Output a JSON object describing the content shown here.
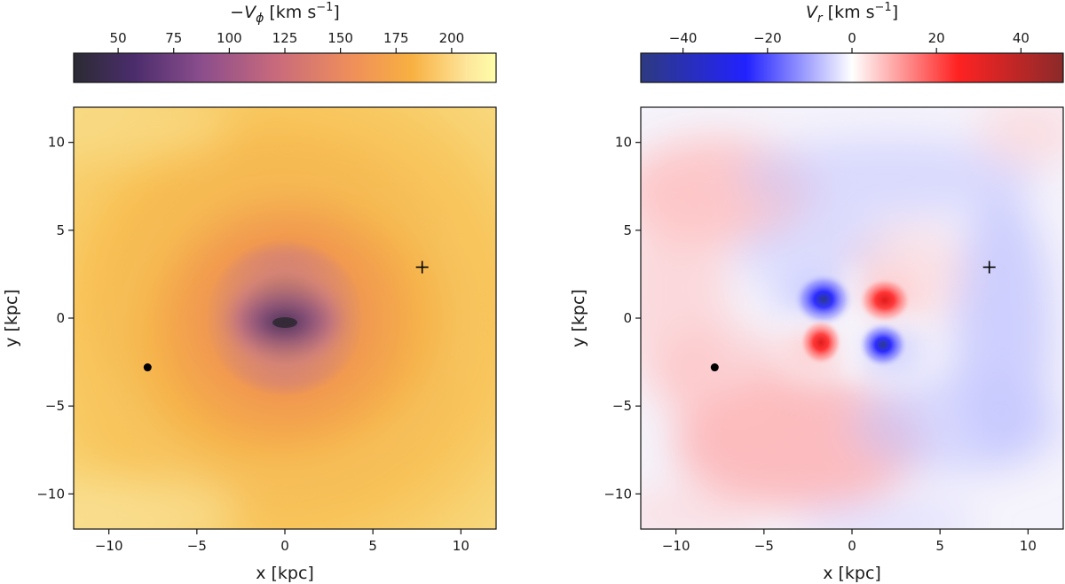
{
  "chart_data": [
    {
      "type": "heatmap",
      "title": "",
      "xlabel": "x [kpc]",
      "ylabel": "y [kpc]",
      "xlim": [
        -12,
        12
      ],
      "ylim": [
        -12,
        12
      ],
      "xticks": [
        -10,
        -5,
        0,
        5,
        10
      ],
      "yticks": [
        -10,
        -5,
        0,
        5,
        10
      ],
      "xtick_labels": [
        "−10",
        "−5",
        "0",
        "5",
        "10"
      ],
      "ytick_labels": [
        "−10",
        "−5",
        "0",
        "5",
        "10"
      ],
      "colorbar": {
        "label_prefix": "−",
        "label_var": "V",
        "label_sub": "ϕ",
        "label_unit": " [km s",
        "label_exp": "−1",
        "label_close": "]",
        "range": [
          30,
          220
        ],
        "ticks": [
          50,
          75,
          100,
          125,
          150,
          175,
          200
        ],
        "tick_labels": [
          "50",
          "75",
          "100",
          "125",
          "150",
          "175",
          "200"
        ],
        "placement": "top",
        "colormap": "inferno-like",
        "stops": [
          "#2b2b33",
          "#4a2c6b",
          "#8a4d8c",
          "#c96a7c",
          "#ef8f5a",
          "#f8b041",
          "#fde59a",
          "#fefeaa"
        ]
      },
      "field_description_values": {
        "outer_level": 205,
        "center_level": 45,
        "center_xy": [
          0,
          -0.3
        ]
      },
      "markers": [
        {
          "shape": "dot",
          "x": -7.8,
          "y": -2.8
        },
        {
          "shape": "plus",
          "x": 7.8,
          "y": 2.9
        }
      ]
    },
    {
      "type": "heatmap",
      "title": "",
      "xlabel": "x [kpc]",
      "ylabel": "y [kpc]",
      "xlim": [
        -12,
        12
      ],
      "ylim": [
        -12,
        12
      ],
      "xticks": [
        -10,
        -5,
        0,
        5,
        10
      ],
      "yticks": [
        -10,
        -5,
        0,
        5,
        10
      ],
      "xtick_labels": [
        "−10",
        "−5",
        "0",
        "5",
        "10"
      ],
      "ytick_labels": [
        "−10",
        "−5",
        "0",
        "5",
        "10"
      ],
      "colorbar": {
        "label_prefix": "",
        "label_var": "V",
        "label_sub": "r",
        "label_unit": " [km s",
        "label_exp": "−1",
        "label_close": "]",
        "range": [
          -50,
          50
        ],
        "ticks": [
          -40,
          -20,
          0,
          20,
          40
        ],
        "tick_labels": [
          "−40",
          "−20",
          "0",
          "20",
          "40"
        ],
        "placement": "top",
        "colormap": "diverging blue-white-red",
        "stops": [
          "#2e3a80",
          "#2222ff",
          "#ffffff",
          "#ff2222",
          "#8b2a2a"
        ]
      },
      "lobes": [
        {
          "x": -1.8,
          "y": 0.9,
          "value": -45
        },
        {
          "x": 1.8,
          "y": 0.9,
          "value": 40
        },
        {
          "x": -1.8,
          "y": -1.3,
          "value": 38
        },
        {
          "x": 1.8,
          "y": -1.5,
          "value": -42
        }
      ],
      "markers": [
        {
          "shape": "dot",
          "x": -7.8,
          "y": -2.8
        },
        {
          "shape": "plus",
          "x": 7.8,
          "y": 2.9
        }
      ]
    }
  ]
}
